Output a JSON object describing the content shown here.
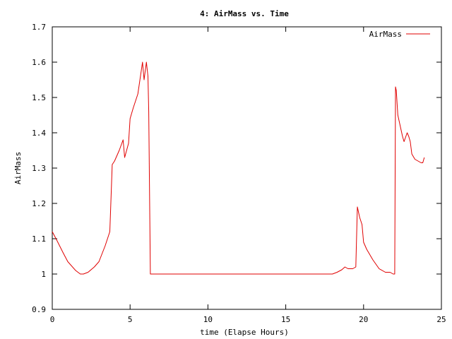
{
  "chart_data": {
    "type": "line",
    "title": "4: AirMass vs. Time",
    "xlabel": "time (Elapse Hours)",
    "ylabel": "AirMass",
    "xlim": [
      0,
      25
    ],
    "ylim": [
      0.9,
      1.7
    ],
    "xticks": [
      0,
      5,
      10,
      15,
      20,
      25
    ],
    "xtick_labels": [
      "0",
      "5",
      "10",
      "15",
      "20",
      "25"
    ],
    "yticks": [
      0.9,
      1.0,
      1.1,
      1.2,
      1.3,
      1.4,
      1.5,
      1.6,
      1.7
    ],
    "ytick_labels": [
      "0.9",
      "1",
      "1.1",
      "1.2",
      "1.3",
      "1.4",
      "1.5",
      "1.6",
      "1.7"
    ],
    "legend_position": "top-right",
    "grid": false,
    "series": [
      {
        "name": "AirMass",
        "color": "#e00000",
        "x": [
          0.0,
          0.3,
          0.7,
          1.0,
          1.5,
          1.8,
          2.0,
          2.3,
          2.7,
          3.0,
          3.4,
          3.7,
          3.85,
          4.0,
          4.3,
          4.55,
          4.65,
          4.9,
          5.0,
          5.2,
          5.5,
          5.8,
          5.9,
          6.05,
          6.15,
          6.2,
          6.3,
          6.5,
          10.0,
          15.0,
          18.0,
          18.3,
          18.6,
          18.8,
          19.0,
          19.3,
          19.5,
          19.6,
          19.75,
          19.9,
          20.0,
          20.2,
          20.6,
          21.0,
          21.4,
          21.7,
          21.9,
          22.0,
          22.05,
          22.1,
          22.2,
          22.3,
          22.5,
          22.6,
          22.8,
          22.9,
          23.0,
          23.1,
          23.3,
          23.5,
          23.7,
          23.8,
          23.9
        ],
        "y": [
          1.12,
          1.095,
          1.06,
          1.035,
          1.01,
          1.0,
          1.0,
          1.005,
          1.02,
          1.035,
          1.08,
          1.12,
          1.31,
          1.32,
          1.35,
          1.38,
          1.33,
          1.37,
          1.44,
          1.47,
          1.51,
          1.6,
          1.55,
          1.6,
          1.56,
          1.46,
          1.0,
          1.0,
          1.0,
          1.0,
          1.0,
          1.005,
          1.012,
          1.02,
          1.015,
          1.015,
          1.02,
          1.19,
          1.16,
          1.14,
          1.09,
          1.07,
          1.04,
          1.015,
          1.005,
          1.005,
          1.0,
          1.0,
          1.53,
          1.52,
          1.45,
          1.43,
          1.39,
          1.375,
          1.4,
          1.39,
          1.375,
          1.34,
          1.325,
          1.32,
          1.315,
          1.315,
          1.33
        ]
      }
    ]
  }
}
